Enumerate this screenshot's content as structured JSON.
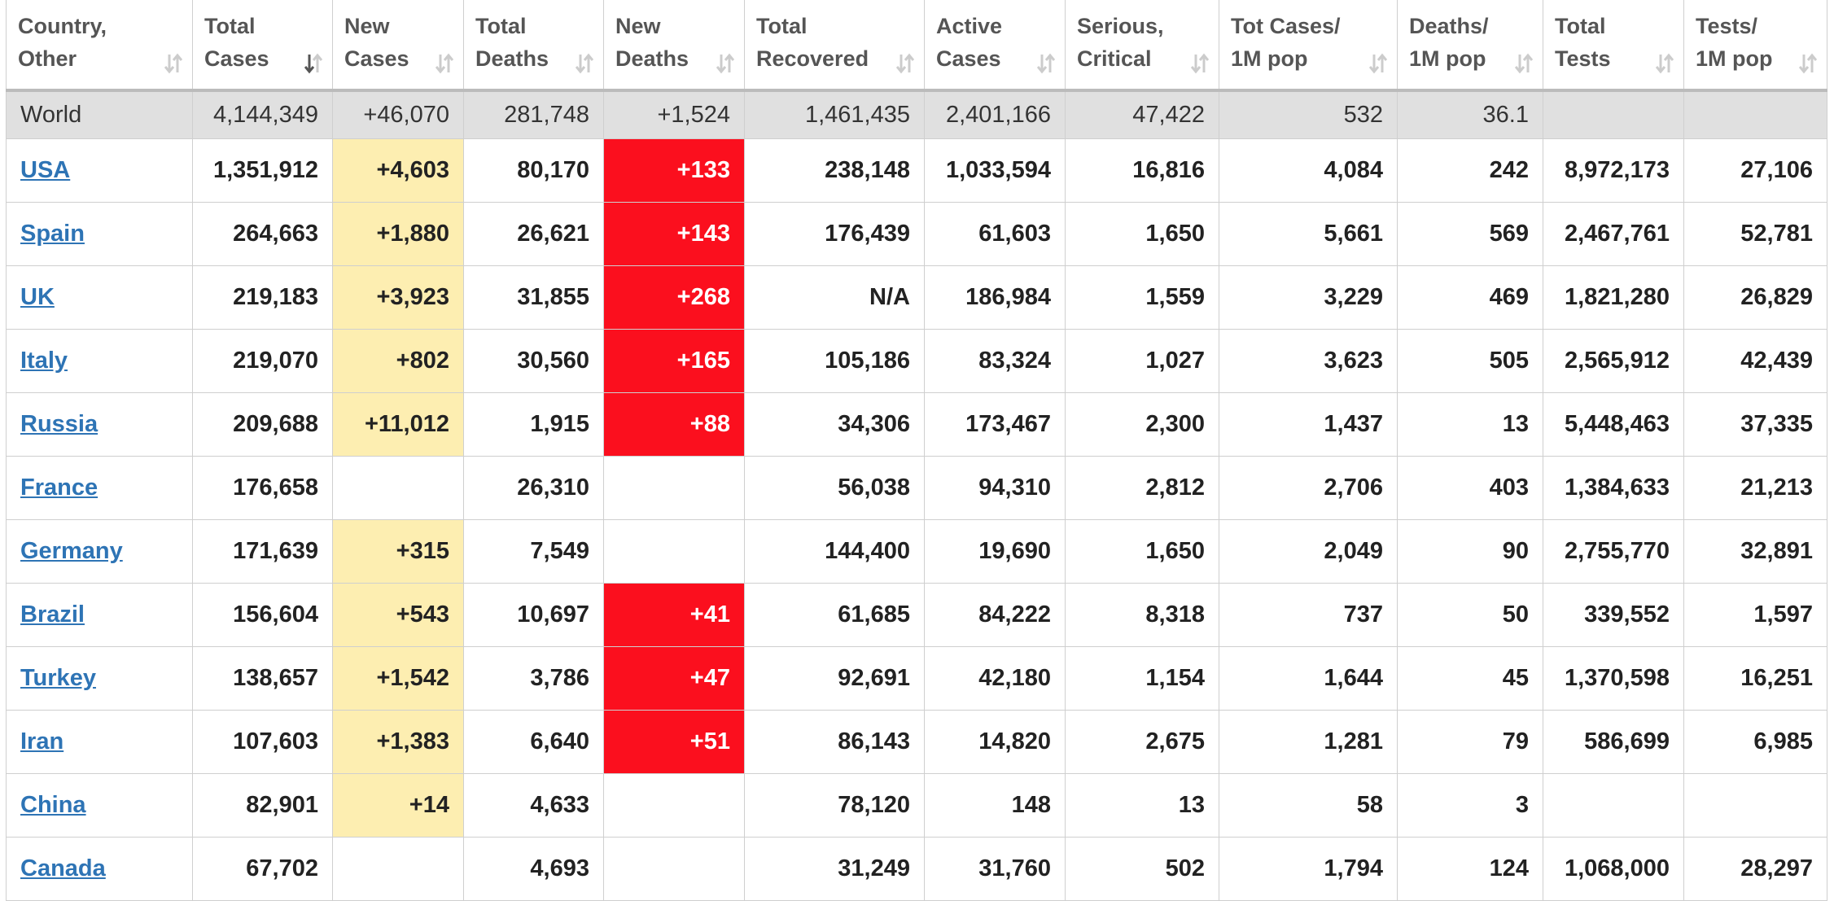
{
  "table": {
    "columns": [
      "Country,\nOther",
      "Total\nCases",
      "New\nCases",
      "Total\nDeaths",
      "New\nDeaths",
      "Total\nRecovered",
      "Active\nCases",
      "Serious,\nCritical",
      "Tot Cases/\n1M pop",
      "Deaths/\n1M pop",
      "Total\nTests",
      "Tests/\n1M pop"
    ],
    "world": [
      "World",
      "4,144,349",
      "+46,070",
      "281,748",
      "+1,524",
      "1,461,435",
      "2,401,166",
      "47,422",
      "532",
      "36.1",
      null,
      null
    ],
    "rows": [
      [
        "USA",
        "1,351,912",
        "+4,603",
        "80,170",
        "+133",
        "238,148",
        "1,033,594",
        "16,816",
        "4,084",
        "242",
        "8,972,173",
        "27,106"
      ],
      [
        "Spain",
        "264,663",
        "+1,880",
        "26,621",
        "+143",
        "176,439",
        "61,603",
        "1,650",
        "5,661",
        "569",
        "2,467,761",
        "52,781"
      ],
      [
        "UK",
        "219,183",
        "+3,923",
        "31,855",
        "+268",
        "N/A",
        "186,984",
        "1,559",
        "3,229",
        "469",
        "1,821,280",
        "26,829"
      ],
      [
        "Italy",
        "219,070",
        "+802",
        "30,560",
        "+165",
        "105,186",
        "83,324",
        "1,027",
        "3,623",
        "505",
        "2,565,912",
        "42,439"
      ],
      [
        "Russia",
        "209,688",
        "+11,012",
        "1,915",
        "+88",
        "34,306",
        "173,467",
        "2,300",
        "1,437",
        "13",
        "5,448,463",
        "37,335"
      ],
      [
        "France",
        "176,658",
        null,
        "26,310",
        null,
        "56,038",
        "94,310",
        "2,812",
        "2,706",
        "403",
        "1,384,633",
        "21,213"
      ],
      [
        "Germany",
        "171,639",
        "+315",
        "7,549",
        null,
        "144,400",
        "19,690",
        "1,650",
        "2,049",
        "90",
        "2,755,770",
        "32,891"
      ],
      [
        "Brazil",
        "156,604",
        "+543",
        "10,697",
        "+41",
        "61,685",
        "84,222",
        "8,318",
        "737",
        "50",
        "339,552",
        "1,597"
      ],
      [
        "Turkey",
        "138,657",
        "+1,542",
        "3,786",
        "+47",
        "92,691",
        "42,180",
        "1,154",
        "1,644",
        "45",
        "1,370,598",
        "16,251"
      ],
      [
        "Iran",
        "107,603",
        "+1,383",
        "6,640",
        "+51",
        "86,143",
        "14,820",
        "2,675",
        "1,281",
        "79",
        "586,699",
        "6,985"
      ],
      [
        "China",
        "82,901",
        "+14",
        "4,633",
        null,
        "78,120",
        "148",
        "13",
        "58",
        "3",
        null,
        null
      ],
      [
        "Canada",
        "67,702",
        null,
        "4,693",
        null,
        "31,249",
        "31,760",
        "502",
        "1,794",
        "124",
        "1,068,000",
        "28,297"
      ]
    ]
  }
}
